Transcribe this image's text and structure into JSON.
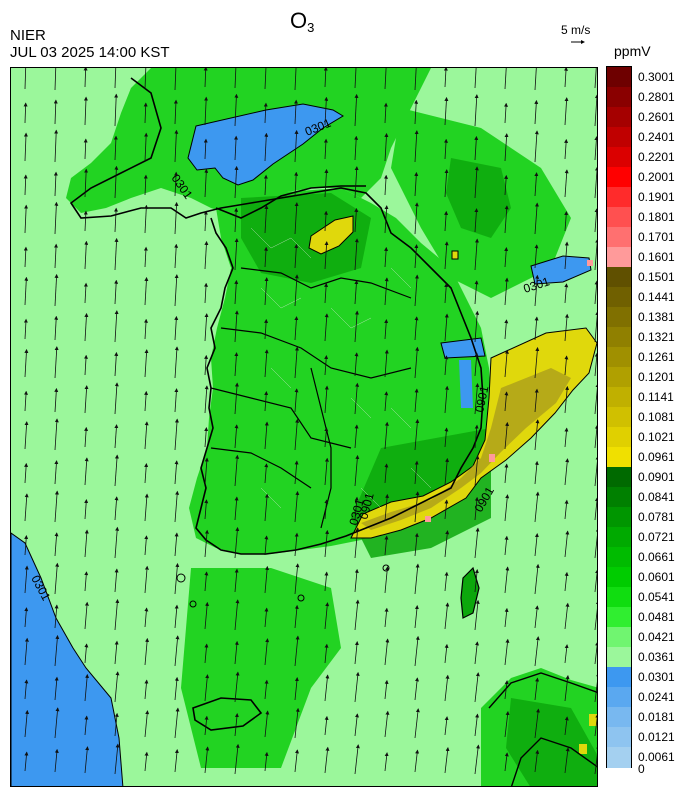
{
  "header": {
    "title_main": "O",
    "title_sub": "3",
    "agency": "NIER",
    "datetime": "JUL 03 2025 14:00 KST",
    "wind_reference": "5 m/s",
    "unit": "ppmV"
  },
  "map": {
    "contour_labels": [
      "0301",
      "0301",
      "0301",
      "0301",
      "0901",
      "0901",
      "0301",
      "0901"
    ],
    "wind_direction_general": "north-northeast",
    "colors": {
      "sea_background": "#9bf79b",
      "land_green": "#22d322",
      "dark_green": "#0ca70c",
      "blue_low": "#3d98f0",
      "yellow_high": "#e0d80c",
      "olive_high": "#b6aa18",
      "pink": "#ff9a9a"
    }
  },
  "colorbar": {
    "levels": [
      {
        "label": "0.3001",
        "color": "#6e0000"
      },
      {
        "label": "0.2801",
        "color": "#8a0000"
      },
      {
        "label": "0.2601",
        "color": "#a50000"
      },
      {
        "label": "0.2401",
        "color": "#c00000"
      },
      {
        "label": "0.2201",
        "color": "#db0000"
      },
      {
        "label": "0.2001",
        "color": "#ff0000"
      },
      {
        "label": "0.1901",
        "color": "#ff2b2b"
      },
      {
        "label": "0.1801",
        "color": "#ff5050"
      },
      {
        "label": "0.1701",
        "color": "#ff7070"
      },
      {
        "label": "0.1601",
        "color": "#ff9a9a"
      },
      {
        "label": "0.1501",
        "color": "#605000"
      },
      {
        "label": "0.1441",
        "color": "#706000"
      },
      {
        "label": "0.1381",
        "color": "#807000"
      },
      {
        "label": "0.1321",
        "color": "#908000"
      },
      {
        "label": "0.1261",
        "color": "#a09000"
      },
      {
        "label": "0.1201",
        "color": "#b0a000"
      },
      {
        "label": "0.1141",
        "color": "#c0b000"
      },
      {
        "label": "0.1081",
        "color": "#d0c000"
      },
      {
        "label": "0.1021",
        "color": "#e0d000"
      },
      {
        "label": "0.0961",
        "color": "#f0e000"
      },
      {
        "label": "0.0901",
        "color": "#006a00"
      },
      {
        "label": "0.0841",
        "color": "#008000"
      },
      {
        "label": "0.0781",
        "color": "#009600"
      },
      {
        "label": "0.0721",
        "color": "#00aa00"
      },
      {
        "label": "0.0661",
        "color": "#00bb00"
      },
      {
        "label": "0.0601",
        "color": "#00cc00"
      },
      {
        "label": "0.0541",
        "color": "#10dd10"
      },
      {
        "label": "0.0481",
        "color": "#30ee30"
      },
      {
        "label": "0.0421",
        "color": "#70f570"
      },
      {
        "label": "0.0361",
        "color": "#9bf79b"
      },
      {
        "label": "0.0301",
        "color": "#3d98f0"
      },
      {
        "label": "0.0241",
        "color": "#5aa8f0"
      },
      {
        "label": "0.0181",
        "color": "#78b8f0"
      },
      {
        "label": "0.0121",
        "color": "#8ec4f0"
      },
      {
        "label": "0.0061",
        "color": "#a4d0f0"
      },
      {
        "label": "0",
        "color": "#a4d0f0"
      }
    ]
  }
}
